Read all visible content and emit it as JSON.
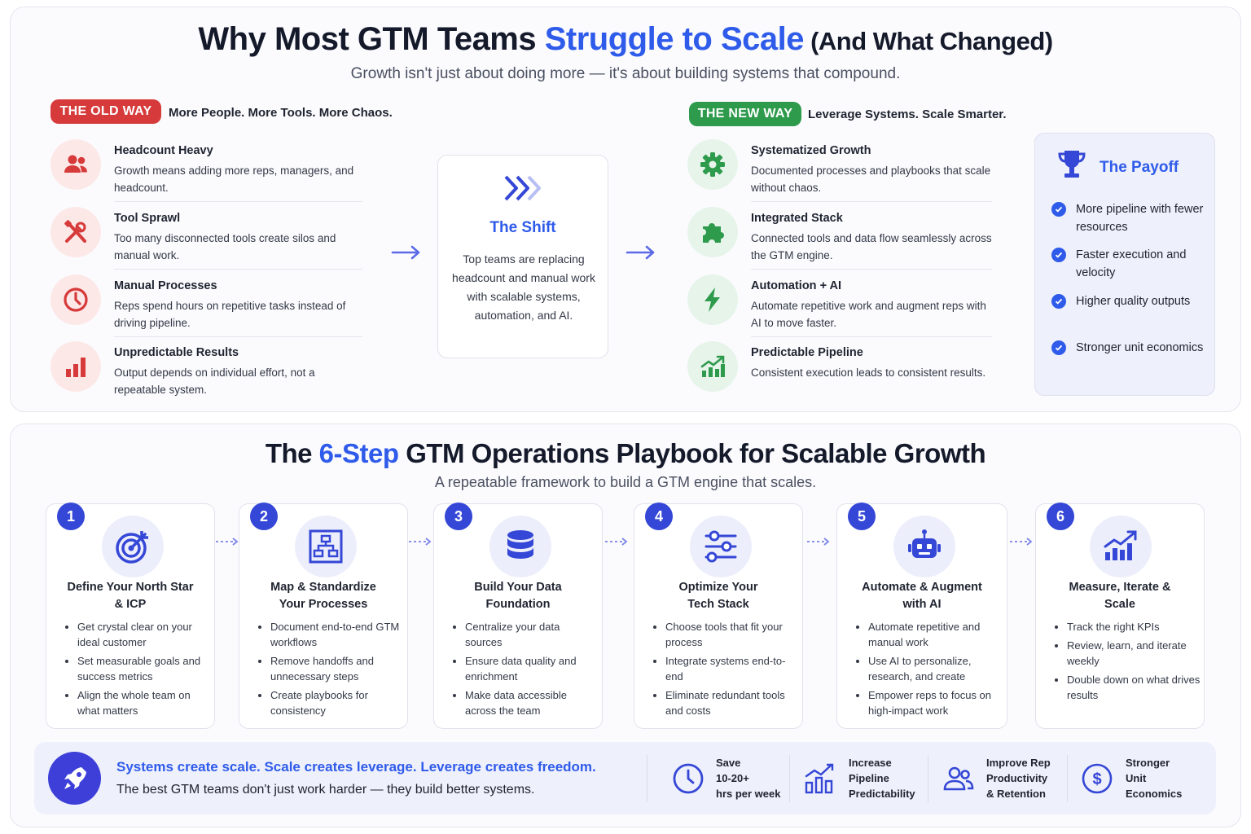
{
  "top": {
    "title_part1": "Why Most GTM Teams ",
    "title_accent": "Struggle to Scale",
    "title_part2": " (And What Changed)",
    "subtitle": "Growth isn't just about doing more — it's about building systems that compound.",
    "old_way": {
      "badge": "THE OLD WAY",
      "tagline": "More People. More Tools. More Chaos.",
      "items": [
        {
          "title": "Headcount Heavy",
          "desc": "Growth means adding more reps, managers, and headcount.",
          "icon": "people-icon"
        },
        {
          "title": "Tool Sprawl",
          "desc": "Too many disconnected tools create silos and manual work.",
          "icon": "tools-icon"
        },
        {
          "title": "Manual Processes",
          "desc": "Reps spend hours on repetitive tasks instead of driving pipeline.",
          "icon": "clock-icon"
        },
        {
          "title": "Unpredictable Results",
          "desc": "Output depends on individual effort, not a repeatable system.",
          "icon": "bar-chart-icon"
        }
      ]
    },
    "shift": {
      "title": "The Shift",
      "desc": "Top teams are replacing headcount and manual work with scalable systems, automation, and AI."
    },
    "new_way": {
      "badge": "THE NEW WAY",
      "tagline": "Leverage Systems. Scale Smarter.",
      "items": [
        {
          "title": "Systematized Growth",
          "desc": "Documented processes and playbooks that scale without chaos.",
          "icon": "gear-icon"
        },
        {
          "title": "Integrated Stack",
          "desc": "Connected tools and data flow seamlessly across the GTM engine.",
          "icon": "puzzle-icon"
        },
        {
          "title": "Automation + AI",
          "desc": "Automate repetitive work and augment reps with AI to move faster.",
          "icon": "lightning-icon"
        },
        {
          "title": "Predictable Pipeline",
          "desc": "Consistent execution leads to consistent results.",
          "icon": "growth-chart-icon"
        }
      ]
    },
    "payoff": {
      "title": "The Payoff",
      "items": [
        "More pipeline with fewer resources",
        "Faster execution and velocity",
        "Higher quality outputs",
        "Stronger unit economics"
      ]
    }
  },
  "playbook": {
    "title_part1": "The ",
    "title_accent": "6-Step",
    "title_part2": " GTM Operations Playbook for Scalable Growth",
    "subtitle": "A repeatable framework to build a GTM engine that scales.",
    "steps": [
      {
        "num": "1",
        "title": "Define Your North Star & ICP",
        "icon": "target-icon",
        "bullets": [
          "Get crystal clear on your ideal customer",
          "Set measurable goals and success metrics",
          "Align the whole team on what matters"
        ]
      },
      {
        "num": "2",
        "title": "Map & Standardize Your Processes",
        "icon": "workflow-icon",
        "bullets": [
          "Document end-to-end GTM workflows",
          "Remove handoffs and unnecessary steps",
          "Create playbooks for consistency"
        ]
      },
      {
        "num": "3",
        "title": "Build Your Data Foundation",
        "icon": "database-icon",
        "bullets": [
          "Centralize your data sources",
          "Ensure data quality and enrichment",
          "Make data accessible across the team"
        ]
      },
      {
        "num": "4",
        "title": "Optimize Your Tech Stack",
        "icon": "sliders-icon",
        "bullets": [
          "Choose tools that fit your process",
          "Integrate systems end-to-end",
          "Eliminate redundant tools and costs"
        ]
      },
      {
        "num": "5",
        "title": "Automate & Augment with AI",
        "icon": "robot-icon",
        "bullets": [
          "Automate repetitive and manual work",
          "Use AI to personalize, research, and create",
          "Empower reps to focus on high-impact work"
        ]
      },
      {
        "num": "6",
        "title": "Measure, Iterate & Scale",
        "icon": "growth-chart-icon",
        "bullets": [
          "Track the right KPIs",
          "Review, learn, and iterate weekly",
          "Double down on what drives results"
        ]
      }
    ]
  },
  "footer": {
    "headline": "Systems create scale. Scale creates leverage. Leverage creates freedom.",
    "sub": "The best GTM teams don't just work harder — they build better systems.",
    "stats": [
      {
        "l1": "Save",
        "l2": "10-20+",
        "l3": "hrs per week",
        "icon": "clock-icon"
      },
      {
        "l1": "Increase",
        "l2": "Pipeline",
        "l3": "Predictability",
        "icon": "bar-chart-icon"
      },
      {
        "l1": "Improve Rep",
        "l2": "Productivity",
        "l3": "& Retention",
        "icon": "people-icon"
      },
      {
        "l1": "Stronger",
        "l2": "Unit",
        "l3": "Economics",
        "icon": "dollar-icon"
      }
    ]
  },
  "colors": {
    "accent": "#2f5bea",
    "old_way": "#d63a3a",
    "new_way": "#2e9a4c",
    "step_badge": "#3547d6"
  }
}
